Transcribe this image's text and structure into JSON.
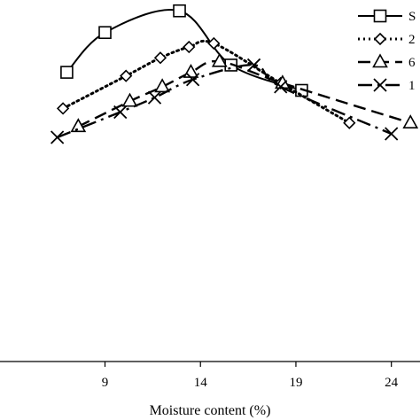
{
  "chart_data": {
    "type": "line",
    "xlabel": "Moisture content (%)",
    "ylabel": "",
    "xlim": [
      3.5,
      25.5
    ],
    "ylim": [
      0,
      1
    ],
    "x_ticks": [
      "9",
      "14",
      "19",
      "24"
    ],
    "x_tick_values": [
      9,
      14,
      19,
      24
    ],
    "grid": false,
    "legend_position": "top-right",
    "series": [
      {
        "name": "S",
        "style": "solid",
        "marker": "square",
        "x": [
          7.0,
          9.0,
          12.9,
          15.6,
          19.3
        ],
        "y": [
          0.8,
          0.91,
          0.97,
          0.82,
          0.75
        ]
      },
      {
        "name": "2",
        "style": "dotted",
        "marker": "diamond",
        "x": [
          6.8,
          10.1,
          11.9,
          13.4,
          14.7,
          18.2,
          21.8
        ],
        "y": [
          0.7,
          0.79,
          0.84,
          0.87,
          0.88,
          0.77,
          0.66
        ]
      },
      {
        "name": "6",
        "style": "dashed",
        "marker": "triangle",
        "x": [
          7.6,
          10.3,
          12.0,
          13.5,
          15.0,
          18.3,
          25.0
        ],
        "y": [
          0.65,
          0.72,
          0.76,
          0.8,
          0.83,
          0.77,
          0.66
        ]
      },
      {
        "name": "1",
        "style": "dashdot",
        "marker": "cross",
        "x": [
          6.5,
          9.8,
          11.6,
          13.6,
          16.8,
          18.2,
          24.0
        ],
        "y": [
          0.62,
          0.69,
          0.73,
          0.78,
          0.82,
          0.76,
          0.63
        ]
      }
    ]
  }
}
